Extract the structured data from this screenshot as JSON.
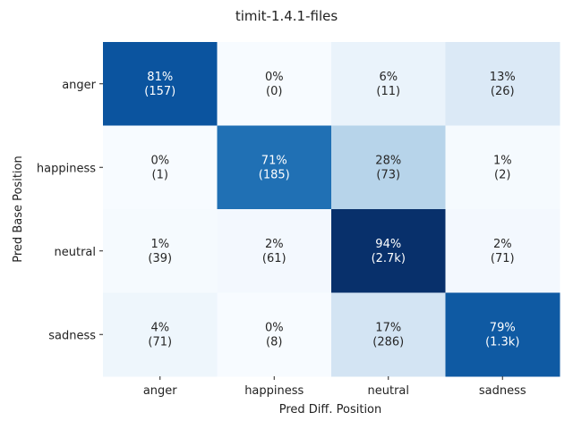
{
  "chart_data": {
    "type": "heatmap",
    "title": "timit-1.4.1-files",
    "xlabel": "Pred Diff. Position",
    "ylabel": "Pred Base Position",
    "x_categories": [
      "anger",
      "happiness",
      "neutral",
      "sadness"
    ],
    "y_categories": [
      "anger",
      "happiness",
      "neutral",
      "sadness"
    ],
    "percent_values": [
      [
        81,
        0,
        6,
        13
      ],
      [
        0,
        71,
        28,
        1
      ],
      [
        1,
        2,
        94,
        2
      ],
      [
        4,
        0,
        17,
        79
      ]
    ],
    "cells": [
      [
        {
          "pct": "81%",
          "count": "(157)"
        },
        {
          "pct": "0%",
          "count": "(0)"
        },
        {
          "pct": "6%",
          "count": "(11)"
        },
        {
          "pct": "13%",
          "count": "(26)"
        }
      ],
      [
        {
          "pct": "0%",
          "count": "(1)"
        },
        {
          "pct": "71%",
          "count": "(185)"
        },
        {
          "pct": "28%",
          "count": "(73)"
        },
        {
          "pct": "1%",
          "count": "(2)"
        }
      ],
      [
        {
          "pct": "1%",
          "count": "(39)"
        },
        {
          "pct": "2%",
          "count": "(61)"
        },
        {
          "pct": "94%",
          "count": "(2.7k)"
        },
        {
          "pct": "2%",
          "count": "(71)"
        }
      ],
      [
        {
          "pct": "4%",
          "count": "(71)"
        },
        {
          "pct": "0%",
          "count": "(8)"
        },
        {
          "pct": "17%",
          "count": "(286)"
        },
        {
          "pct": "79%",
          "count": "(1.3k)"
        }
      ]
    ],
    "color_scale": "Blues",
    "color_range": [
      0,
      94
    ],
    "grid": false,
    "legend": "none"
  }
}
